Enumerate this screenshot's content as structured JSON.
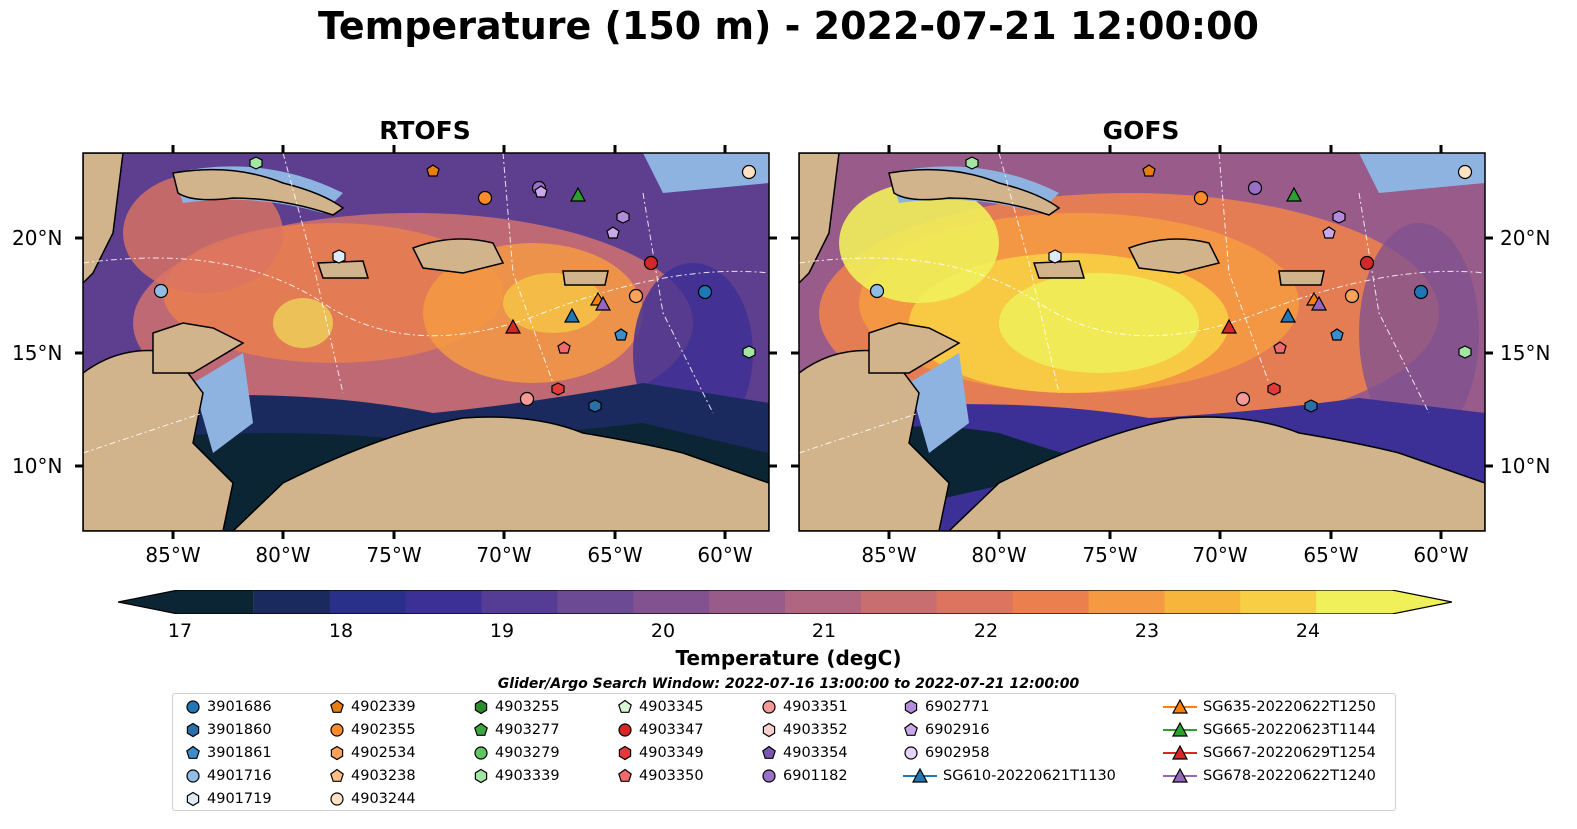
{
  "title": "Temperature (150 m) - 2022-07-21 12:00:00",
  "panels": {
    "left_title": "RTOFS",
    "right_title": "GOFS"
  },
  "axes": {
    "lat_labels": [
      "20°N",
      "15°N",
      "10°N"
    ],
    "lon_labels": [
      "85°W",
      "80°W",
      "75°W",
      "70°W",
      "65°W",
      "60°W"
    ]
  },
  "colorbar": {
    "label": "Temperature (degC)",
    "ticks": [
      "17",
      "18",
      "19",
      "20",
      "21",
      "22",
      "23",
      "24"
    ],
    "range": [
      17,
      24.5
    ],
    "colors": [
      "#0b2535",
      "#1a2a5e",
      "#28308a",
      "#3c2f95",
      "#553d96",
      "#6c4a94",
      "#81528f",
      "#985b8a",
      "#b06580",
      "#c96e70",
      "#dc7460",
      "#ec7f4e",
      "#f59a43",
      "#f8b53c",
      "#f8cf44",
      "#f0f05a"
    ]
  },
  "search_window": "Glider/Argo Search Window: 2022-07-16 13:00:00 to 2022-07-21 12:00:00",
  "legend": [
    {
      "label": "3901686",
      "marker": "circle",
      "color": "#1f77b4"
    },
    {
      "label": "3901860",
      "marker": "hexagon",
      "color": "#2a6fa8"
    },
    {
      "label": "3901861",
      "marker": "pentagon",
      "color": "#3c8dcc"
    },
    {
      "label": "4901716",
      "marker": "circle",
      "color": "#8fbde3"
    },
    {
      "label": "4901719",
      "marker": "hexagon",
      "color": "#dcebf7"
    },
    {
      "label": "4902339",
      "marker": "pentagon",
      "color": "#e67e10"
    },
    {
      "label": "4902355",
      "marker": "circle",
      "color": "#ff8c2b"
    },
    {
      "label": "4902534",
      "marker": "hexagon",
      "color": "#ffa25a"
    },
    {
      "label": "4903238",
      "marker": "pentagon",
      "color": "#ffbe84"
    },
    {
      "label": "4903244",
      "marker": "circle",
      "color": "#ffe1c4"
    },
    {
      "label": "4903255",
      "marker": "hexagon",
      "color": "#2b8a2b"
    },
    {
      "label": "4903277",
      "marker": "pentagon",
      "color": "#3fa53f"
    },
    {
      "label": "4903279",
      "marker": "circle",
      "color": "#62c462"
    },
    {
      "label": "4903339",
      "marker": "hexagon",
      "color": "#a3e6a3"
    },
    {
      "label": "4903345",
      "marker": "pentagon",
      "color": "#d9f7d4"
    },
    {
      "label": "4903347",
      "marker": "circle",
      "color": "#d62728"
    },
    {
      "label": "4903349",
      "marker": "hexagon",
      "color": "#e03a3a"
    },
    {
      "label": "4903350",
      "marker": "pentagon",
      "color": "#ef6b6b"
    },
    {
      "label": "4903351",
      "marker": "circle",
      "color": "#f59a96"
    },
    {
      "label": "4903352",
      "marker": "hexagon",
      "color": "#fbd0cc"
    },
    {
      "label": "4903354",
      "marker": "pentagon",
      "color": "#7a56b0"
    },
    {
      "label": "6901182",
      "marker": "circle",
      "color": "#9a6fc9"
    },
    {
      "label": "6902771",
      "marker": "hexagon",
      "color": "#b48bdb"
    },
    {
      "label": "6902916",
      "marker": "pentagon",
      "color": "#c9a9ea"
    },
    {
      "label": "6902958",
      "marker": "circle",
      "color": "#e6d3f7"
    },
    {
      "label": "SG610-20220621T1130",
      "marker": "triangle-line",
      "color": "#1f77b4"
    },
    {
      "label": "SG635-20220622T1250",
      "marker": "triangle-line",
      "color": "#ff7f0e"
    },
    {
      "label": "SG665-20220623T1144",
      "marker": "triangle-line",
      "color": "#2ca02c"
    },
    {
      "label": "SG667-20220629T1254",
      "marker": "triangle-line",
      "color": "#d62728"
    },
    {
      "label": "SG678-20220622T1240",
      "marker": "triangle-line",
      "color": "#9467bd"
    }
  ]
}
